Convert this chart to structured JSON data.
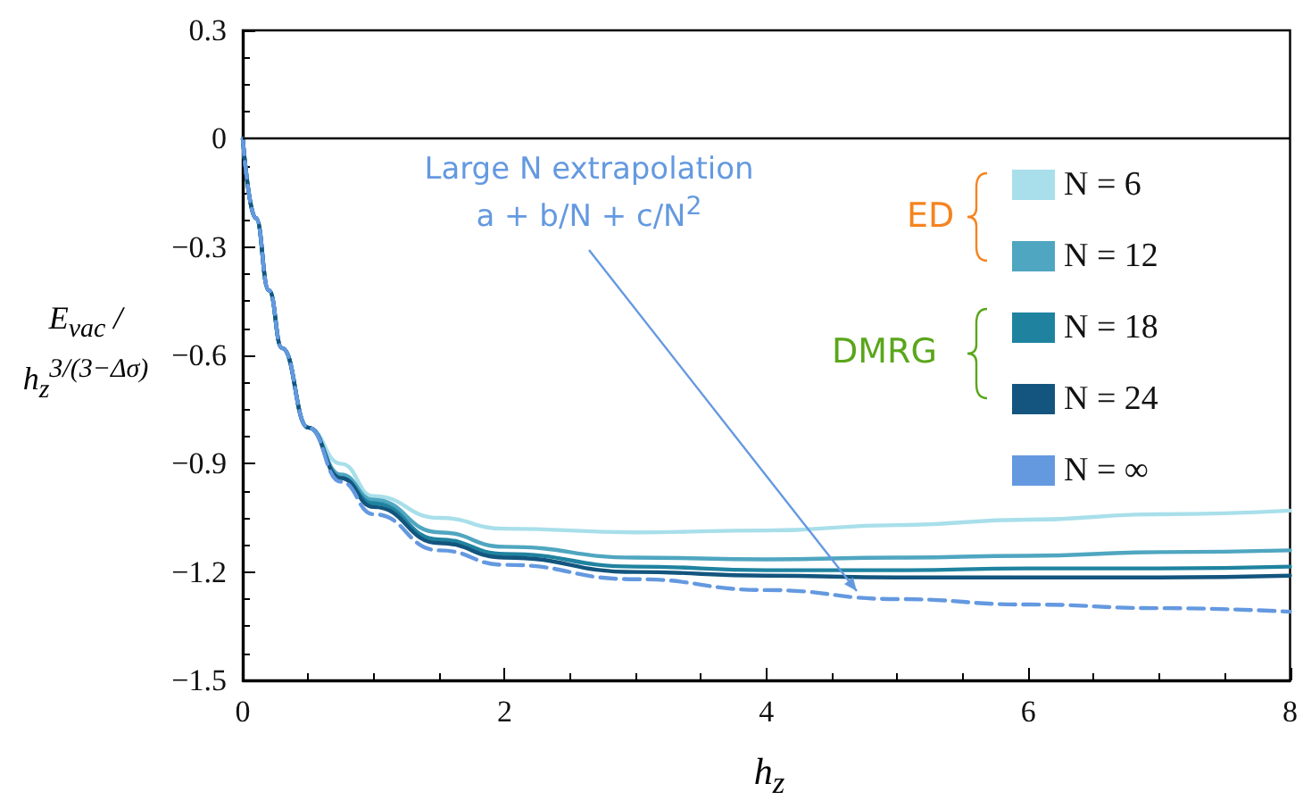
{
  "chart_data": {
    "type": "line",
    "xlabel": "h$_{z}$",
    "ylabel": "E$_{vac}$ / h$_{z}$$^{3/(3−Δσ)}$",
    "x": [
      0,
      0.1,
      0.2,
      0.3,
      0.5,
      0.75,
      1,
      1.5,
      2,
      3,
      4,
      5,
      6,
      7,
      8
    ],
    "series": [
      {
        "name": "N = 6",
        "color": "#a8dfea",
        "values": [
          0,
          -0.22,
          -0.42,
          -0.58,
          -0.8,
          -0.9,
          -0.99,
          -1.05,
          -1.08,
          -1.09,
          -1.085,
          -1.07,
          -1.055,
          -1.04,
          -1.03
        ]
      },
      {
        "name": "N = 12",
        "color": "#4fa6c0",
        "values": [
          0,
          -0.22,
          -0.42,
          -0.58,
          -0.8,
          -0.93,
          -1.0,
          -1.09,
          -1.13,
          -1.16,
          -1.165,
          -1.16,
          -1.155,
          -1.145,
          -1.14
        ]
      },
      {
        "name": "N = 18",
        "color": "#1f83a0",
        "values": [
          0,
          -0.22,
          -0.42,
          -0.58,
          -0.8,
          -0.94,
          -1.01,
          -1.11,
          -1.15,
          -1.185,
          -1.195,
          -1.195,
          -1.19,
          -1.19,
          -1.185
        ]
      },
      {
        "name": "N = 24",
        "color": "#13557e",
        "values": [
          0,
          -0.22,
          -0.42,
          -0.58,
          -0.8,
          -0.94,
          -1.02,
          -1.12,
          -1.16,
          -1.2,
          -1.21,
          -1.215,
          -1.215,
          -1.215,
          -1.21
        ]
      },
      {
        "name": "N = ∞",
        "color": "#6499e0",
        "line_style": "dashed",
        "values": [
          0,
          -0.22,
          -0.42,
          -0.58,
          -0.8,
          -0.95,
          -1.04,
          -1.14,
          -1.18,
          -1.22,
          -1.25,
          -1.275,
          -1.29,
          -1.3,
          -1.31
        ]
      }
    ],
    "xlim": [
      0,
      8
    ],
    "xticks": [
      0,
      2,
      4,
      6,
      8
    ],
    "ylim": [
      -1.5,
      0.3
    ],
    "yticks": [
      -1.5,
      -1.2,
      -0.9,
      -0.6,
      -0.3,
      0,
      0.3
    ],
    "ref_lines": [
      {
        "axis": "y",
        "value": 0,
        "color": "#000000"
      }
    ],
    "annotations": [
      "Large N extrapolation",
      "a + b/N + c/N$^{2}$",
      "ED",
      "DMRG"
    ],
    "grid": false,
    "legend": "right",
    "marker": "none",
    "line_style": "solid"
  }
}
